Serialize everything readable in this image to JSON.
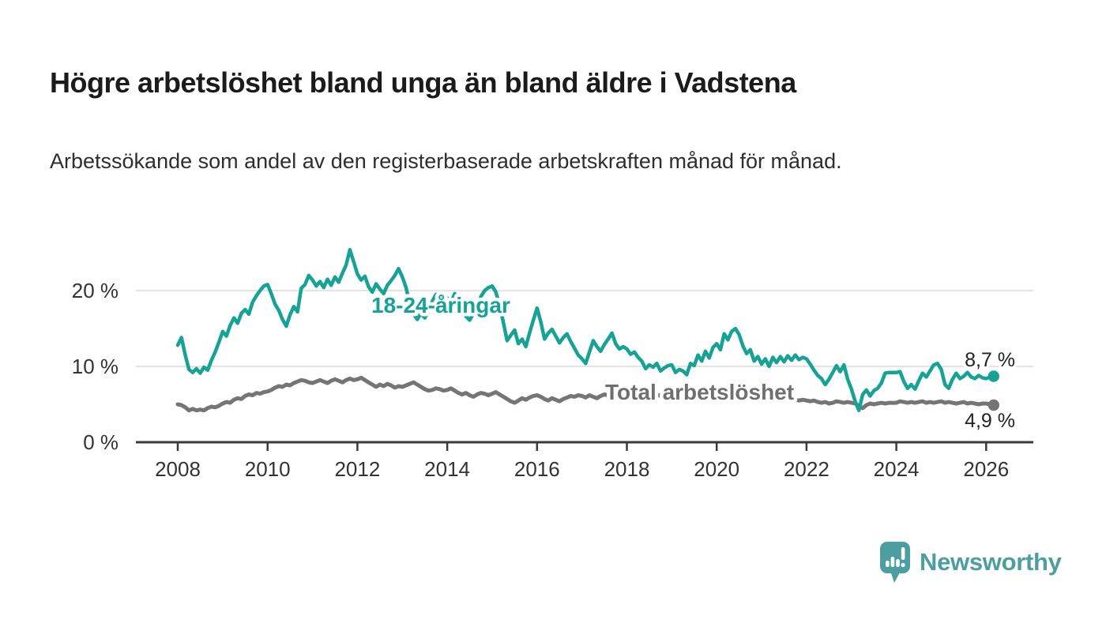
{
  "page": {
    "title": "Högre arbetslöshet bland unga än bland äldre i Vadstena",
    "subtitle": "Arbetssökande som andel av den registerbaserade arbetskraften månad för månad.",
    "background_color": "#ffffff"
  },
  "branding": {
    "wordmark": "Newsworthy",
    "logo_icon": "newsworthy-speech-bubble-bar-chart-icon",
    "color": "#4C9EA0"
  },
  "chart_data": {
    "type": "line",
    "title": "Högre arbetslöshet bland unga än bland äldre i Vadstena",
    "subtitle": "Arbetssökande som andel av den registerbaserade arbetskraften månad för månad.",
    "legend": "inline-labels",
    "grid": "horizontal-only",
    "colors": {
      "grid": "#DADADA",
      "axis": "#3A3A3A",
      "axis_text": "#333333",
      "end_label_text": "#222222"
    },
    "x_axis": {
      "unit": "year",
      "data_range": [
        2008.0,
        2026.17
      ],
      "ticks": [
        {
          "year": 2008,
          "label": "2008"
        },
        {
          "year": 2010,
          "label": "2010"
        },
        {
          "year": 2012,
          "label": "2012"
        },
        {
          "year": 2014,
          "label": "2014"
        },
        {
          "year": 2016,
          "label": "2016"
        },
        {
          "year": 2018,
          "label": "2018"
        },
        {
          "year": 2020,
          "label": "2020"
        },
        {
          "year": 2022,
          "label": "2022"
        },
        {
          "year": 2024,
          "label": "2024"
        },
        {
          "year": 2026,
          "label": "2026"
        }
      ]
    },
    "y_axis": {
      "unit": "%",
      "range": [
        0,
        26
      ],
      "ticks": [
        {
          "value": 0,
          "label": "0 %"
        },
        {
          "value": 10,
          "label": "10 %"
        },
        {
          "value": 20,
          "label": "20 %"
        }
      ]
    },
    "series": [
      {
        "id": "youth",
        "label": "18-24-åringar",
        "color": "#16A294",
        "frequency": "monthly",
        "start_year": 2008,
        "end_value": 8.7,
        "end_label": "8,7 %",
        "values": [
          12.8,
          13.8,
          11.5,
          9.6,
          9.2,
          9.7,
          9.1,
          9.9,
          9.5,
          10.8,
          11.9,
          13.2,
          14.6,
          14.0,
          15.4,
          16.4,
          15.7,
          17.0,
          17.5,
          16.9,
          18.5,
          19.3,
          20.0,
          20.6,
          20.8,
          19.6,
          18.2,
          17.4,
          16.2,
          15.3,
          16.8,
          17.9,
          17.2,
          20.3,
          20.8,
          22.0,
          21.4,
          20.6,
          21.2,
          20.4,
          21.5,
          20.7,
          21.8,
          21.1,
          22.3,
          23.4,
          25.4,
          23.8,
          22.2,
          21.4,
          21.9,
          20.5,
          19.8,
          20.9,
          20.2,
          19.6,
          20.7,
          21.3,
          22.0,
          22.9,
          21.8,
          20.4,
          18.3,
          16.9,
          16.2,
          17.0,
          16.4,
          17.3,
          18.6,
          19.5,
          18.8,
          19.3,
          19.0,
          18.4,
          19.6,
          18.8,
          17.7,
          16.6,
          16.1,
          17.0,
          17.8,
          19.2,
          20.0,
          20.4,
          20.6,
          19.8,
          18.0,
          15.8,
          13.4,
          14.1,
          14.8,
          13.0,
          13.6,
          12.6,
          14.4,
          16.1,
          17.7,
          15.9,
          13.6,
          14.4,
          14.9,
          14.0,
          13.1,
          13.8,
          14.3,
          13.3,
          12.4,
          11.5,
          11.0,
          10.4,
          11.9,
          13.4,
          12.6,
          12.0,
          12.9,
          13.6,
          14.4,
          13.0,
          12.3,
          12.6,
          12.3,
          11.6,
          11.9,
          11.2,
          10.7,
          9.7,
          10.2,
          9.9,
          10.4,
          9.4,
          9.8,
          10.1,
          10.2,
          9.2,
          9.6,
          9.4,
          8.9,
          10.4,
          10.1,
          11.5,
          10.7,
          12.0,
          11.1,
          12.5,
          13.0,
          12.2,
          14.3,
          13.5,
          14.6,
          15.0,
          14.2,
          12.7,
          11.7,
          12.2,
          10.7,
          11.3,
          10.3,
          11.0,
          10.0,
          11.2,
          10.5,
          11.3,
          10.6,
          11.4,
          10.8,
          11.5,
          10.9,
          11.2,
          11.0,
          10.3,
          9.5,
          8.8,
          8.4,
          7.6,
          8.3,
          9.2,
          10.1,
          9.3,
          10.2,
          8.3,
          7.0,
          5.4,
          4.2,
          6.3,
          6.9,
          6.1,
          6.8,
          7.1,
          7.8,
          9.1,
          9.2,
          9.2,
          9.2,
          9.3,
          8.0,
          7.1,
          7.6,
          7.0,
          8.1,
          9.1,
          8.6,
          9.4,
          10.2,
          10.4,
          9.6,
          7.6,
          7.1,
          8.3,
          9.1,
          8.4,
          8.7,
          9.2,
          8.6,
          8.4,
          8.8,
          8.5,
          8.4,
          8.6,
          8.7
        ]
      },
      {
        "id": "total",
        "label": "Total arbetslöshet",
        "color": "#757575",
        "frequency": "monthly",
        "start_year": 2008,
        "end_value": 4.9,
        "end_label": "4,9 %",
        "values": [
          5.0,
          4.9,
          4.6,
          4.2,
          4.4,
          4.2,
          4.3,
          4.2,
          4.5,
          4.7,
          4.6,
          4.8,
          5.1,
          5.3,
          5.2,
          5.6,
          5.8,
          5.7,
          6.1,
          6.3,
          6.2,
          6.5,
          6.4,
          6.6,
          6.7,
          6.9,
          7.2,
          7.4,
          7.3,
          7.6,
          7.5,
          7.8,
          8.0,
          8.2,
          8.1,
          7.9,
          7.8,
          8.0,
          8.2,
          8.0,
          7.8,
          8.1,
          8.3,
          8.1,
          7.9,
          8.2,
          8.4,
          8.2,
          8.3,
          8.5,
          8.2,
          7.9,
          7.6,
          7.3,
          7.6,
          7.4,
          7.7,
          7.5,
          7.2,
          7.4,
          7.3,
          7.5,
          7.7,
          7.9,
          7.6,
          7.3,
          7.0,
          6.8,
          6.9,
          7.1,
          7.0,
          6.8,
          6.9,
          7.1,
          6.8,
          6.5,
          6.3,
          6.5,
          6.2,
          6.0,
          6.3,
          6.5,
          6.4,
          6.2,
          6.4,
          6.6,
          6.3,
          6.0,
          5.7,
          5.4,
          5.2,
          5.5,
          5.8,
          5.6,
          5.9,
          6.1,
          6.2,
          6.0,
          5.7,
          5.5,
          5.8,
          5.6,
          5.4,
          5.7,
          5.9,
          6.1,
          6.0,
          6.2,
          6.1,
          5.9,
          6.2,
          6.0,
          5.8,
          6.1,
          6.3,
          6.2,
          6.0,
          6.3,
          6.2,
          6.4,
          6.3,
          6.1,
          6.2,
          6.0,
          6.1,
          6.3,
          6.2,
          6.4,
          6.3,
          6.1,
          6.2,
          6.4,
          6.3,
          6.5,
          6.4,
          6.2,
          6.3,
          6.5,
          6.4,
          6.6,
          6.5,
          6.3,
          6.4,
          6.6,
          6.7,
          6.9,
          7.1,
          7.0,
          6.9,
          6.8,
          6.7,
          6.6,
          6.5,
          6.4,
          6.3,
          6.2,
          6.1,
          6.0,
          5.9,
          5.8,
          5.9,
          5.7,
          5.6,
          5.7,
          5.5,
          5.6,
          5.5,
          5.6,
          5.5,
          5.4,
          5.5,
          5.3,
          5.2,
          5.3,
          5.1,
          5.2,
          5.4,
          5.3,
          5.2,
          5.3,
          5.2,
          5.1,
          4.8,
          4.5,
          4.9,
          5.1,
          5.0,
          5.1,
          5.2,
          5.1,
          5.2,
          5.2,
          5.2,
          5.4,
          5.3,
          5.2,
          5.3,
          5.2,
          5.3,
          5.4,
          5.2,
          5.3,
          5.2,
          5.3,
          5.4,
          5.2,
          5.3,
          5.2,
          5.1,
          5.2,
          5.3,
          5.1,
          5.2,
          5.1,
          5.0,
          5.1,
          5.1,
          5.0,
          4.9
        ]
      }
    ]
  }
}
